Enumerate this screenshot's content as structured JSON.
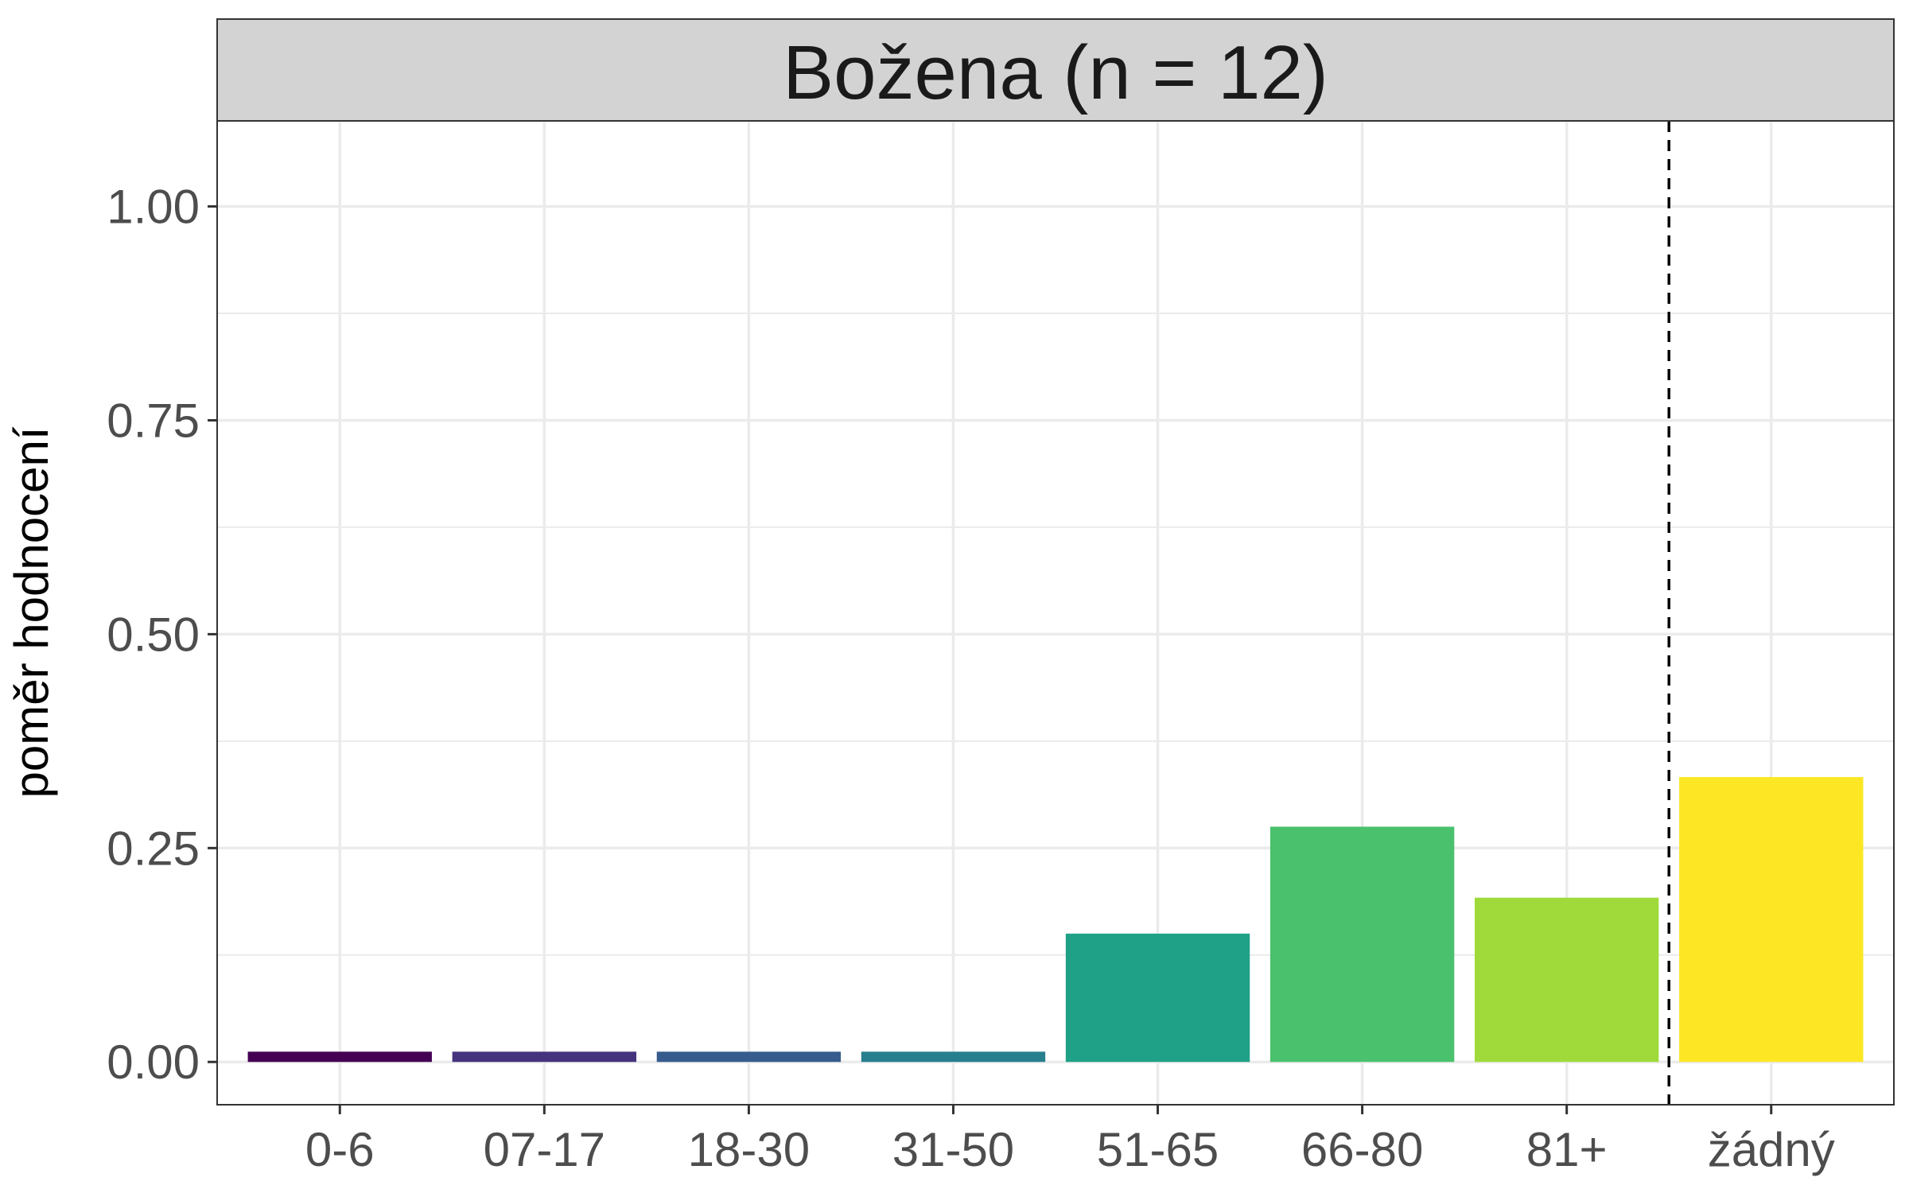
{
  "chart_data": {
    "type": "bar",
    "facet_title": "Božena (n = 12)",
    "categories": [
      "0-6",
      "07-17",
      "18-30",
      "31-50",
      "51-65",
      "66-80",
      "81+",
      "žádný"
    ],
    "values": [
      0.012,
      0.012,
      0.012,
      0.012,
      0.15,
      0.275,
      0.192,
      0.333
    ],
    "colors": [
      "#440154",
      "#46337E",
      "#365C8D",
      "#277F8E",
      "#1FA187",
      "#4AC16D",
      "#9FDA3A",
      "#FDE725"
    ],
    "xlabel": "",
    "ylabel": "poměr hodnocení",
    "ylim": [
      -0.05,
      1.1
    ],
    "yticks": [
      0.0,
      0.25,
      0.5,
      0.75,
      1.0
    ],
    "ytick_labels": [
      "0.00",
      "0.25",
      "0.50",
      "0.75",
      "1.00"
    ],
    "reference_line": {
      "style": "dashed",
      "between": [
        "81+",
        "žádný"
      ]
    },
    "grid": true,
    "theme": "bw"
  }
}
